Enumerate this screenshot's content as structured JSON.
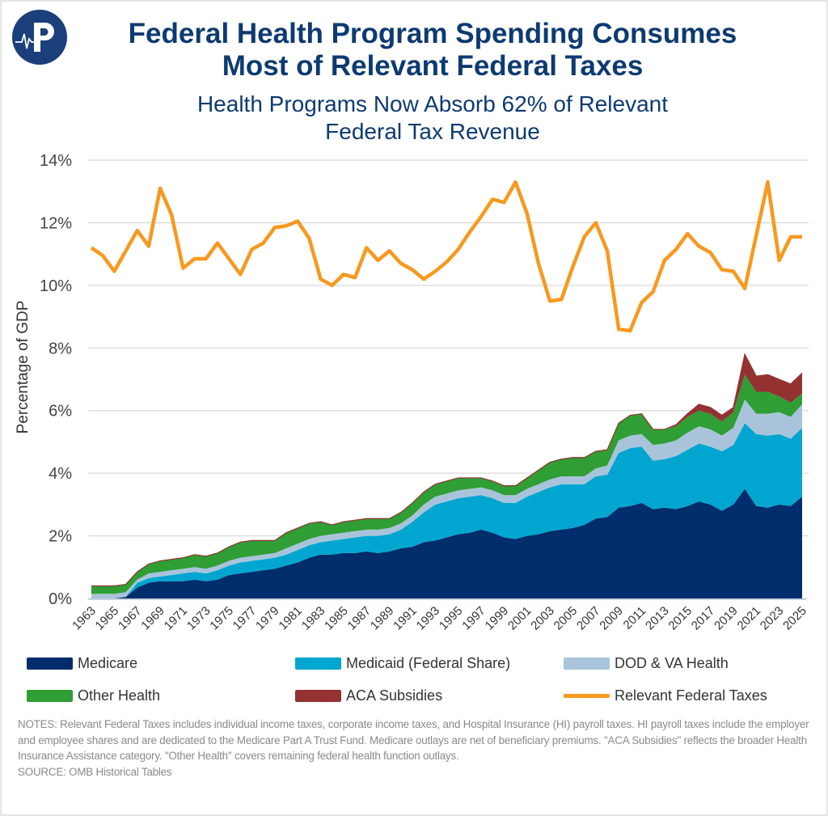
{
  "header": {
    "title_lines": [
      "Federal Health Program Spending Consumes",
      "Most of Relevant Federal Taxes"
    ],
    "subtitle_lines": [
      "Health Programs Now Absorb 62% of Relevant",
      "Federal Tax Revenue"
    ],
    "logo": "P"
  },
  "chart_data": {
    "type": "area",
    "stacked": true,
    "ylabel": "Percentage of GDP",
    "ylim": [
      0,
      14
    ],
    "yticks": [
      "0%",
      "2%",
      "4%",
      "6%",
      "8%",
      "10%",
      "12%",
      "14%"
    ],
    "grid": true,
    "legend_position": "bottom",
    "x": [
      1963,
      1964,
      1965,
      1966,
      1967,
      1968,
      1969,
      1970,
      1971,
      1972,
      1973,
      1974,
      1975,
      1976,
      1977,
      1978,
      1979,
      1980,
      1981,
      1982,
      1983,
      1984,
      1985,
      1986,
      1987,
      1988,
      1989,
      1990,
      1991,
      1992,
      1993,
      1994,
      1995,
      1996,
      1997,
      1998,
      1999,
      2000,
      2001,
      2002,
      2003,
      2004,
      2005,
      2006,
      2007,
      2008,
      2009,
      2010,
      2011,
      2012,
      2013,
      2014,
      2015,
      2016,
      2017,
      2018,
      2019,
      2020,
      2021,
      2022,
      2023,
      2024,
      2025
    ],
    "xticks": [
      "1963",
      "1965",
      "1967",
      "1969",
      "1971",
      "1973",
      "1975",
      "1977",
      "1979",
      "1981",
      "1983",
      "1985",
      "1987",
      "1989",
      "1991",
      "1993",
      "1995",
      "1997",
      "1999",
      "2001",
      "2003",
      "2005",
      "2007",
      "2009",
      "2011",
      "2013",
      "2015",
      "2017",
      "2019",
      "2021",
      "2023",
      "2025"
    ],
    "series": [
      {
        "name": "Medicare",
        "kind": "area",
        "color": "#002d6b",
        "values": [
          0,
          0,
          0,
          0.05,
          0.35,
          0.5,
          0.55,
          0.55,
          0.55,
          0.6,
          0.55,
          0.6,
          0.75,
          0.8,
          0.85,
          0.9,
          0.95,
          1.05,
          1.15,
          1.3,
          1.4,
          1.4,
          1.45,
          1.45,
          1.5,
          1.45,
          1.5,
          1.6,
          1.65,
          1.8,
          1.85,
          1.95,
          2.05,
          2.1,
          2.2,
          2.1,
          1.95,
          1.9,
          2.0,
          2.05,
          2.15,
          2.2,
          2.25,
          2.35,
          2.55,
          2.6,
          2.9,
          2.95,
          3.05,
          2.85,
          2.9,
          2.85,
          2.95,
          3.1,
          3.0,
          2.8,
          3.0,
          3.5,
          2.95,
          2.9,
          3.0,
          2.95,
          3.25
        ]
      },
      {
        "name": "Medicaid (Federal Share)",
        "kind": "area",
        "color": "#00a6cf",
        "values": [
          0,
          0,
          0,
          0,
          0.15,
          0.15,
          0.15,
          0.2,
          0.25,
          0.25,
          0.25,
          0.3,
          0.3,
          0.35,
          0.35,
          0.35,
          0.35,
          0.35,
          0.4,
          0.4,
          0.4,
          0.45,
          0.45,
          0.5,
          0.5,
          0.55,
          0.55,
          0.6,
          0.8,
          0.95,
          1.15,
          1.15,
          1.15,
          1.15,
          1.1,
          1.1,
          1.1,
          1.15,
          1.25,
          1.35,
          1.4,
          1.45,
          1.4,
          1.3,
          1.35,
          1.35,
          1.75,
          1.85,
          1.8,
          1.55,
          1.55,
          1.7,
          1.8,
          1.85,
          1.85,
          1.9,
          1.9,
          2.1,
          2.3,
          2.3,
          2.25,
          2.15,
          2.2
        ]
      },
      {
        "name": "DOD & VA Health",
        "kind": "area",
        "color": "#a9c4da",
        "values": [
          0.15,
          0.15,
          0.15,
          0.15,
          0.1,
          0.15,
          0.15,
          0.15,
          0.15,
          0.15,
          0.15,
          0.15,
          0.15,
          0.15,
          0.15,
          0.15,
          0.15,
          0.2,
          0.2,
          0.2,
          0.2,
          0.2,
          0.2,
          0.2,
          0.2,
          0.2,
          0.2,
          0.2,
          0.2,
          0.25,
          0.25,
          0.25,
          0.25,
          0.25,
          0.25,
          0.25,
          0.25,
          0.25,
          0.25,
          0.25,
          0.25,
          0.25,
          0.25,
          0.25,
          0.25,
          0.3,
          0.4,
          0.4,
          0.4,
          0.5,
          0.5,
          0.5,
          0.55,
          0.55,
          0.55,
          0.5,
          0.55,
          0.75,
          0.65,
          0.7,
          0.7,
          0.7,
          0.75
        ]
      },
      {
        "name": "Other Health",
        "kind": "area",
        "color": "#2e9e35",
        "values": [
          0.25,
          0.25,
          0.25,
          0.25,
          0.25,
          0.3,
          0.35,
          0.35,
          0.35,
          0.4,
          0.4,
          0.4,
          0.45,
          0.5,
          0.5,
          0.45,
          0.4,
          0.5,
          0.5,
          0.5,
          0.45,
          0.3,
          0.35,
          0.35,
          0.35,
          0.35,
          0.3,
          0.35,
          0.4,
          0.4,
          0.4,
          0.4,
          0.4,
          0.35,
          0.3,
          0.3,
          0.3,
          0.3,
          0.35,
          0.45,
          0.55,
          0.55,
          0.6,
          0.6,
          0.55,
          0.5,
          0.55,
          0.65,
          0.65,
          0.5,
          0.45,
          0.45,
          0.5,
          0.5,
          0.5,
          0.45,
          0.5,
          0.8,
          0.7,
          0.7,
          0.5,
          0.45,
          0.35
        ]
      },
      {
        "name": "ACA Subsidies",
        "kind": "area",
        "color": "#943232",
        "values": [
          0,
          0,
          0,
          0,
          0,
          0,
          0,
          0,
          0,
          0,
          0,
          0,
          0,
          0,
          0,
          0,
          0,
          0,
          0,
          0,
          0,
          0,
          0,
          0,
          0,
          0,
          0,
          0,
          0,
          0,
          0,
          0,
          0,
          0,
          0,
          0,
          0,
          0,
          0,
          0,
          0,
          0,
          0,
          0,
          0,
          0,
          0,
          0,
          0,
          0,
          0,
          0.05,
          0.1,
          0.2,
          0.2,
          0.2,
          0.15,
          0.65,
          0.5,
          0.55,
          0.55,
          0.6,
          0.65
        ]
      },
      {
        "name": "Relevant Federal Taxes",
        "kind": "line",
        "color": "#f7991f",
        "values": [
          11.2,
          10.95,
          10.45,
          11.1,
          11.75,
          11.25,
          13.1,
          12.25,
          10.55,
          10.85,
          10.85,
          11.35,
          10.85,
          10.35,
          11.15,
          11.35,
          11.85,
          11.9,
          12.05,
          11.5,
          10.2,
          10.0,
          10.35,
          10.25,
          11.2,
          10.8,
          11.1,
          10.7,
          10.5,
          10.2,
          10.45,
          10.75,
          11.15,
          11.7,
          12.2,
          12.75,
          12.65,
          13.3,
          12.3,
          10.7,
          9.5,
          9.55,
          10.6,
          11.55,
          12.0,
          11.1,
          8.6,
          8.55,
          9.45,
          9.8,
          10.8,
          11.15,
          11.65,
          11.25,
          11.05,
          10.5,
          10.45,
          9.9,
          11.6,
          13.3,
          10.8,
          11.55,
          11.55
        ]
      }
    ]
  },
  "legend": [
    {
      "label": "Medicare",
      "color": "#002d6b",
      "kind": "area"
    },
    {
      "label": "Medicaid (Federal Share)",
      "color": "#00a6cf",
      "kind": "area"
    },
    {
      "label": "DOD & VA Health",
      "color": "#a9c4da",
      "kind": "area"
    },
    {
      "label": "Other Health",
      "color": "#2e9e35",
      "kind": "area"
    },
    {
      "label": "ACA Subsidies",
      "color": "#943232",
      "kind": "area"
    },
    {
      "label": "Relevant Federal Taxes",
      "color": "#f7991f",
      "kind": "line"
    }
  ],
  "notes": {
    "text": "NOTES: Relevant Federal Taxes includes individual income taxes, corporate income taxes, and Hospital Insurance (HI) payroll taxes. HI payroll taxes include the employer and employee shares and are dedicated to the Medicare Part A Trust Fund. Medicare outlays are net of beneficiary premiums. \"ACA Subsidies\" reflects the broader Health Insurance Assistance category. \"Other Health\" covers remaining federal health function outlays.",
    "source": "SOURCE: OMB Historical Tables"
  }
}
